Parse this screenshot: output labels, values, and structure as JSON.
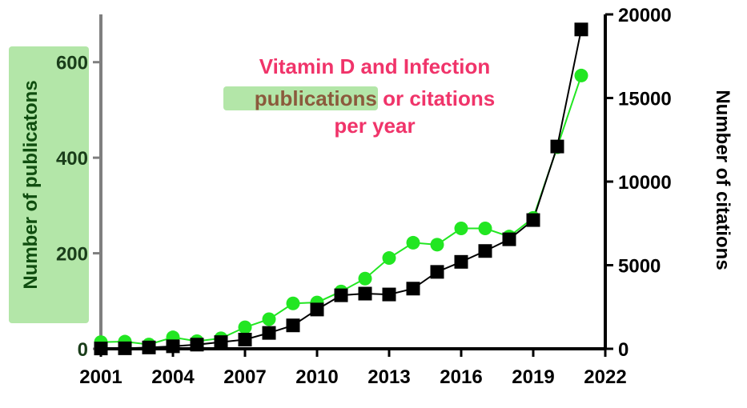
{
  "chart_data": {
    "type": "line",
    "title_lines": {
      "line1": "Vitamin D and Infection",
      "line2_highlight": "publications",
      "line2_rest": " or citations",
      "line3": "per year"
    },
    "xlabel": "",
    "y_left_label": "Number of  publicatons",
    "y_right_label": "Number of citations",
    "xlim": [
      2001,
      2022
    ],
    "ylim_left": [
      0,
      700
    ],
    "ylim_right": [
      0,
      20000
    ],
    "x_ticks": [
      2001,
      2004,
      2007,
      2010,
      2013,
      2016,
      2019,
      2022
    ],
    "y_left_ticks": [
      0,
      200,
      400,
      600
    ],
    "y_right_ticks": [
      0,
      5000,
      10000,
      15000,
      20000
    ],
    "series": [
      {
        "name": "publications",
        "axis": "left",
        "color": "#22e622",
        "marker": "circle",
        "x": [
          2001,
          2002,
          2003,
          2004,
          2005,
          2006,
          2007,
          2008,
          2009,
          2010,
          2011,
          2012,
          2013,
          2014,
          2015,
          2016,
          2017,
          2018,
          2019,
          2020,
          2021
        ],
        "values": [
          14,
          15,
          9,
          24,
          16,
          22,
          45,
          62,
          95,
          97,
          120,
          147,
          190,
          222,
          218,
          252,
          252,
          235,
          274,
          422,
          572
        ]
      },
      {
        "name": "citations",
        "axis": "right",
        "color": "#000000",
        "marker": "square",
        "x": [
          2001,
          2002,
          2003,
          2004,
          2005,
          2006,
          2007,
          2008,
          2009,
          2010,
          2011,
          2012,
          2013,
          2014,
          2015,
          2016,
          2017,
          2018,
          2019,
          2020,
          2021
        ],
        "values": [
          20,
          30,
          80,
          150,
          250,
          400,
          550,
          950,
          1400,
          2350,
          3200,
          3300,
          3250,
          3600,
          4600,
          5200,
          5850,
          6550,
          7700,
          12100,
          19100
        ]
      }
    ],
    "colors": {
      "title": "#f0346a",
      "left_axis_label": "#0f4d0f",
      "left_axis_highlight": "#b3e6a8",
      "left_ticks": "#1a3d1a",
      "axis_line": "#7f7f7f",
      "right_axis": "#000000",
      "highlight_text": "#8b5a3c"
    },
    "grid": false
  }
}
